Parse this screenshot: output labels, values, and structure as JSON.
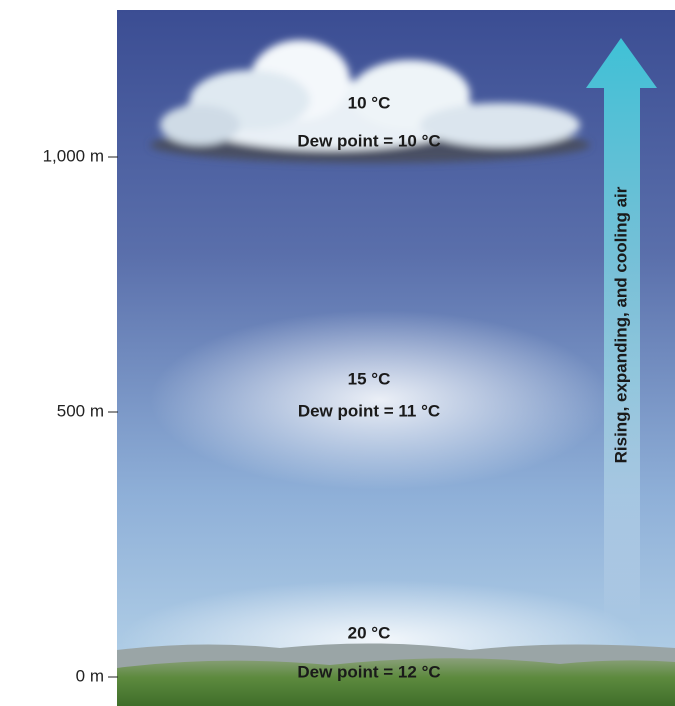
{
  "altitudes": [
    "1,000 m",
    "500 m",
    "0 m"
  ],
  "levels": [
    {
      "temperature": "10 °C",
      "dew_point": "Dew point = 10 °C"
    },
    {
      "temperature": "15 °C",
      "dew_point": "Dew point = 11 °C"
    },
    {
      "temperature": "20 °C",
      "dew_point": "Dew point = 12 °C"
    }
  ],
  "arrow_label": "Rising, expanding, and cooling air"
}
